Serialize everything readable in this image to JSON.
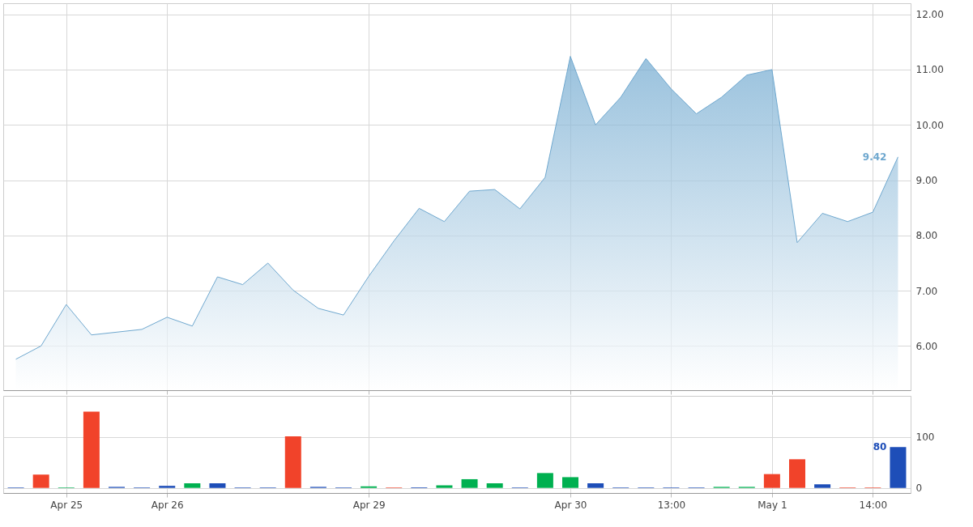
{
  "chart_data": [
    {
      "type": "area",
      "categories": [
        null,
        null,
        null,
        null,
        null,
        null,
        null,
        null,
        null,
        null,
        null,
        null,
        null,
        null,
        null,
        null,
        null,
        null,
        null,
        null,
        null,
        null,
        null,
        null,
        null,
        null,
        null,
        null,
        null,
        null,
        null,
        null,
        null,
        null,
        null,
        null
      ],
      "values": [
        5.76,
        6.0,
        6.75,
        6.2,
        6.25,
        6.3,
        6.52,
        6.36,
        7.25,
        7.11,
        7.5,
        7.01,
        6.68,
        6.56,
        7.26,
        7.9,
        8.49,
        8.25,
        8.8,
        8.83,
        8.48,
        9.05,
        11.24,
        10.0,
        10.5,
        11.2,
        10.65,
        10.2,
        10.5,
        10.9,
        11.0,
        7.87,
        8.4,
        8.25,
        8.42,
        9.42
      ],
      "color": "#6fa8cf",
      "ylim": [
        5.2,
        12.2
      ],
      "yticks": [
        {
          "value": 6,
          "label": "6.00"
        },
        {
          "value": 7,
          "label": "7.00"
        },
        {
          "value": 8,
          "label": "8.00"
        },
        {
          "value": 9,
          "label": "9.00"
        },
        {
          "value": 10,
          "label": "10.00"
        },
        {
          "value": 11,
          "label": "11.00"
        },
        {
          "value": 12,
          "label": "12.00"
        }
      ],
      "grid": true,
      "tick_labels": "y",
      "annotations": [
        "9.42"
      ]
    },
    {
      "type": "bar",
      "categories": [
        null,
        null,
        "Apr 25",
        null,
        null,
        null,
        "Apr 26",
        null,
        null,
        null,
        null,
        null,
        null,
        null,
        "Apr 29",
        null,
        null,
        null,
        null,
        null,
        null,
        null,
        "Apr 30",
        null,
        null,
        null,
        "13:00",
        null,
        null,
        null,
        "May 1",
        null,
        null,
        null,
        "14:00",
        null
      ],
      "values": [
        1,
        26,
        1,
        149,
        2,
        1,
        4,
        9,
        9,
        1,
        1,
        101,
        2,
        1,
        3,
        1,
        1,
        5,
        17,
        9,
        1,
        29,
        21,
        9,
        1,
        1,
        1,
        1,
        2,
        2,
        27,
        56,
        7,
        1,
        1,
        80
      ],
      "colors": [
        "#1e4eb8",
        "#f1432a",
        "#00b050",
        "#f1432a",
        "#1e4eb8",
        "#1e4eb8",
        "#1e4eb8",
        "#00b050",
        "#1e4eb8",
        "#1e4eb8",
        "#1e4eb8",
        "#f1432a",
        "#1e4eb8",
        "#1e4eb8",
        "#00b050",
        "#f1432a",
        "#1e4eb8",
        "#00b050",
        "#00b050",
        "#00b050",
        "#1e4eb8",
        "#00b050",
        "#00b050",
        "#1e4eb8",
        "#1e4eb8",
        "#1e4eb8",
        "#1e4eb8",
        "#1e4eb8",
        "#00b050",
        "#00b050",
        "#f1432a",
        "#f1432a",
        "#1e4eb8",
        "#f1432a",
        "#f1432a",
        "#1e4eb8"
      ],
      "ylim": [
        -10,
        180
      ],
      "yticks": [
        0,
        100
      ],
      "grid": true,
      "annotations": [
        "80"
      ]
    }
  ]
}
